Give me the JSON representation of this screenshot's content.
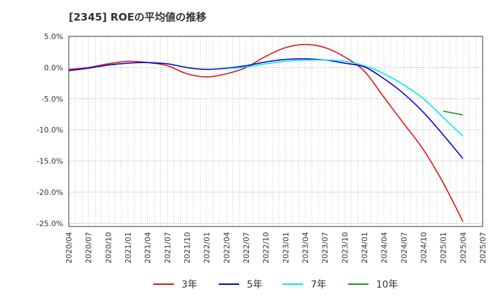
{
  "title": "[2345]  ROEの平均値の推移",
  "chart_data": {
    "type": "line",
    "ylim": [
      -25.5,
      5.0
    ],
    "xlim": [
      "2020/04",
      "2025/07"
    ],
    "grid": true,
    "legend_position": "bottom",
    "y_ticks": [
      5.0,
      0.0,
      -5.0,
      -10.0,
      -15.0,
      -20.0,
      -25.0
    ],
    "y_tick_labels": [
      "5.0%",
      "0.0%",
      "-5.0%",
      "-10.0%",
      "-15.0%",
      "-20.0%",
      "-25.0%"
    ],
    "x_tick_labels": [
      "2020/04",
      "2020/07",
      "2020/10",
      "2021/01",
      "2021/04",
      "2021/07",
      "2021/10",
      "2022/01",
      "2022/04",
      "2022/07",
      "2022/10",
      "2023/01",
      "2023/04",
      "2023/07",
      "2023/10",
      "2024/01",
      "2024/04",
      "2024/07",
      "2024/10",
      "2025/01",
      "2025/04",
      "2025/07"
    ],
    "series": [
      {
        "name": "3年",
        "color": "#dd1111",
        "points": [
          [
            "2020/04",
            -0.3
          ],
          [
            "2020/07",
            0.0
          ],
          [
            "2020/10",
            0.6
          ],
          [
            "2021/01",
            1.0
          ],
          [
            "2021/04",
            0.8
          ],
          [
            "2021/07",
            0.3
          ],
          [
            "2021/10",
            -1.0
          ],
          [
            "2022/01",
            -1.5
          ],
          [
            "2022/04",
            -1.0
          ],
          [
            "2022/07",
            0.0
          ],
          [
            "2022/10",
            1.8
          ],
          [
            "2023/01",
            3.2
          ],
          [
            "2023/04",
            3.7
          ],
          [
            "2023/07",
            3.2
          ],
          [
            "2023/10",
            1.7
          ],
          [
            "2024/01",
            -0.6
          ],
          [
            "2024/04",
            -4.8
          ],
          [
            "2024/07",
            -9.0
          ],
          [
            "2024/10",
            -13.2
          ],
          [
            "2025/01",
            -18.5
          ],
          [
            "2025/04",
            -24.7
          ]
        ]
      },
      {
        "name": "5年",
        "color": "#0000cc",
        "points": [
          [
            "2020/04",
            -0.5
          ],
          [
            "2020/07",
            -0.1
          ],
          [
            "2020/10",
            0.4
          ],
          [
            "2021/01",
            0.7
          ],
          [
            "2021/04",
            0.8
          ],
          [
            "2021/07",
            0.6
          ],
          [
            "2021/10",
            0.0
          ],
          [
            "2022/01",
            -0.3
          ],
          [
            "2022/04",
            -0.1
          ],
          [
            "2022/07",
            0.3
          ],
          [
            "2022/10",
            0.9
          ],
          [
            "2023/01",
            1.3
          ],
          [
            "2023/04",
            1.4
          ],
          [
            "2023/07",
            1.2
          ],
          [
            "2023/10",
            0.7
          ],
          [
            "2024/01",
            0.1
          ],
          [
            "2024/04",
            -1.8
          ],
          [
            "2024/07",
            -4.2
          ],
          [
            "2024/10",
            -7.2
          ],
          [
            "2025/01",
            -10.8
          ],
          [
            "2025/04",
            -14.6
          ]
        ]
      },
      {
        "name": "7年",
        "color": "#00e5ee",
        "points": [
          [
            "2022/04",
            -0.2
          ],
          [
            "2022/07",
            0.1
          ],
          [
            "2022/10",
            0.6
          ],
          [
            "2023/01",
            1.0
          ],
          [
            "2023/04",
            1.2
          ],
          [
            "2023/07",
            1.2
          ],
          [
            "2023/10",
            1.0
          ],
          [
            "2024/01",
            0.3
          ],
          [
            "2024/04",
            -1.0
          ],
          [
            "2024/07",
            -2.8
          ],
          [
            "2024/10",
            -5.0
          ],
          [
            "2025/01",
            -8.0
          ],
          [
            "2025/04",
            -11.0
          ]
        ]
      },
      {
        "name": "10年",
        "color": "#228b22",
        "points": [
          [
            "2025/01",
            -7.0
          ],
          [
            "2025/04",
            -7.6
          ]
        ]
      }
    ]
  }
}
